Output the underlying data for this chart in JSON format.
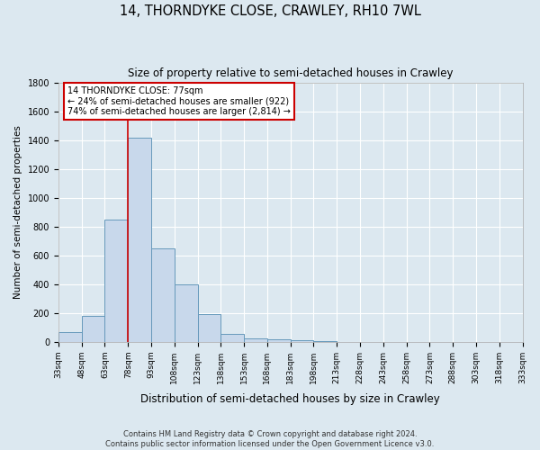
{
  "title": "14, THORNDYKE CLOSE, CRAWLEY, RH10 7WL",
  "subtitle": "Size of property relative to semi-detached houses in Crawley",
  "xlabel": "Distribution of semi-detached houses by size in Crawley",
  "ylabel": "Number of semi-detached properties",
  "bar_color": "#c8d8eb",
  "bar_edge_color": "#6699bb",
  "bg_color": "#dce8f0",
  "plot_bg_color": "#dce8f0",
  "grid_color": "#ffffff",
  "vline_x": 78,
  "vline_color": "#cc0000",
  "annotation_title": "14 THORNDYKE CLOSE: 77sqm",
  "annotation_line1": "← 24% of semi-detached houses are smaller (922)",
  "annotation_line2": "74% of semi-detached houses are larger (2,814) →",
  "bin_starts": [
    33,
    48,
    63,
    78,
    93,
    108,
    123,
    138,
    153,
    168,
    183,
    198,
    213,
    228,
    243,
    258,
    273,
    288,
    303,
    318
  ],
  "bin_width": 15,
  "bin_counts": [
    70,
    180,
    850,
    1420,
    650,
    400,
    190,
    55,
    25,
    15,
    10,
    8,
    0,
    0,
    0,
    0,
    0,
    0,
    0,
    0
  ],
  "xlim_left": 33,
  "xlim_right": 333,
  "ylim": [
    0,
    1800
  ],
  "yticks": [
    0,
    200,
    400,
    600,
    800,
    1000,
    1200,
    1400,
    1600,
    1800
  ],
  "xtick_labels": [
    "33sqm",
    "48sqm",
    "63sqm",
    "78sqm",
    "93sqm",
    "108sqm",
    "123sqm",
    "138sqm",
    "153sqm",
    "168sqm",
    "183sqm",
    "198sqm",
    "213sqm",
    "228sqm",
    "243sqm",
    "258sqm",
    "273sqm",
    "288sqm",
    "303sqm",
    "318sqm",
    "333sqm"
  ],
  "footer_line1": "Contains HM Land Registry data © Crown copyright and database right 2024.",
  "footer_line2": "Contains public sector information licensed under the Open Government Licence v3.0."
}
